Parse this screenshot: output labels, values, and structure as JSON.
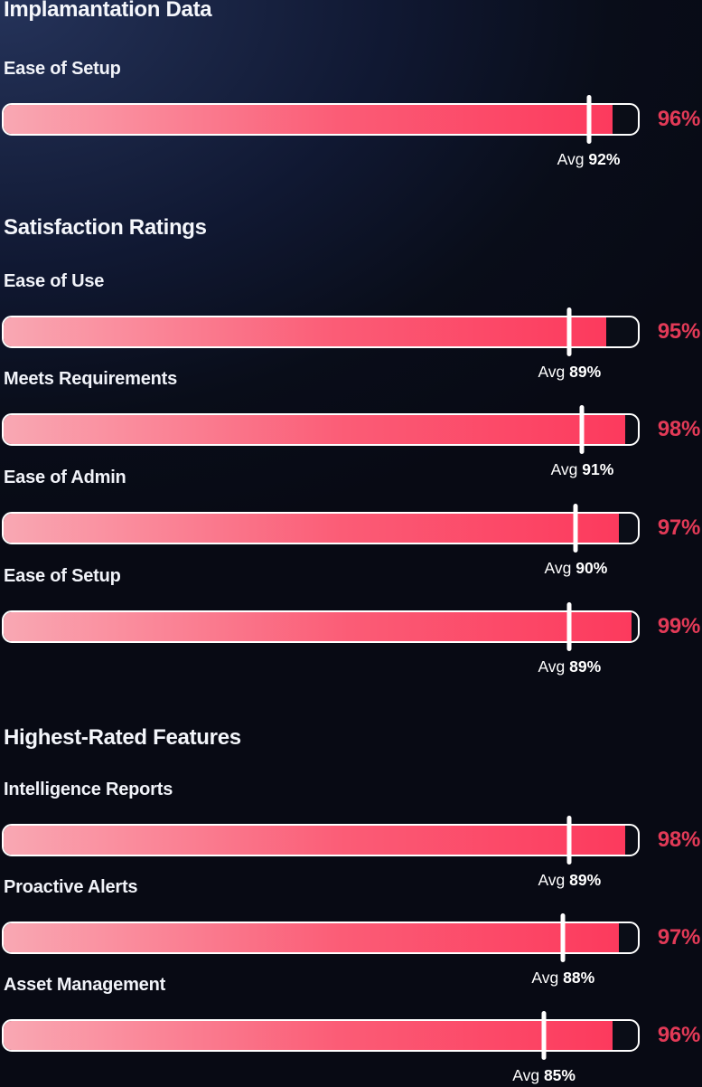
{
  "chart_data": {
    "type": "bar",
    "orientation": "horizontal",
    "xlim": [
      0,
      100
    ],
    "value_suffix": "%",
    "avg_prefix": "Avg",
    "sections": [
      {
        "title": "Implamantation Data",
        "rows": [
          {
            "label": "Ease of Setup",
            "value": 96,
            "avg": 92
          }
        ]
      },
      {
        "title": "Satisfaction Ratings",
        "rows": [
          {
            "label": "Ease of Use",
            "value": 95,
            "avg": 89
          },
          {
            "label": "Meets Requirements",
            "value": 98,
            "avg": 91
          },
          {
            "label": "Ease of Admin",
            "value": 97,
            "avg": 90
          },
          {
            "label": "Ease of Setup",
            "value": 99,
            "avg": 89
          }
        ]
      },
      {
        "title": "Highest-Rated Features",
        "rows": [
          {
            "label": "Intelligence Reports",
            "value": 98,
            "avg": 89
          },
          {
            "label": "Proactive Alerts",
            "value": 97,
            "avg": 88
          },
          {
            "label": "Asset Management",
            "value": 96,
            "avg": 85
          }
        ]
      }
    ],
    "colors": {
      "background_top_left": "#25335a",
      "background_dark": "#080a14",
      "bar_fill_start": "#f9a8b3",
      "bar_fill_end": "#fc3a5d",
      "bar_track": "#0a0d17",
      "bar_border": "#ffffff",
      "average_marker": "#ffffff",
      "value_text": "#e23a57",
      "label_text": "#f1f3f9"
    }
  }
}
